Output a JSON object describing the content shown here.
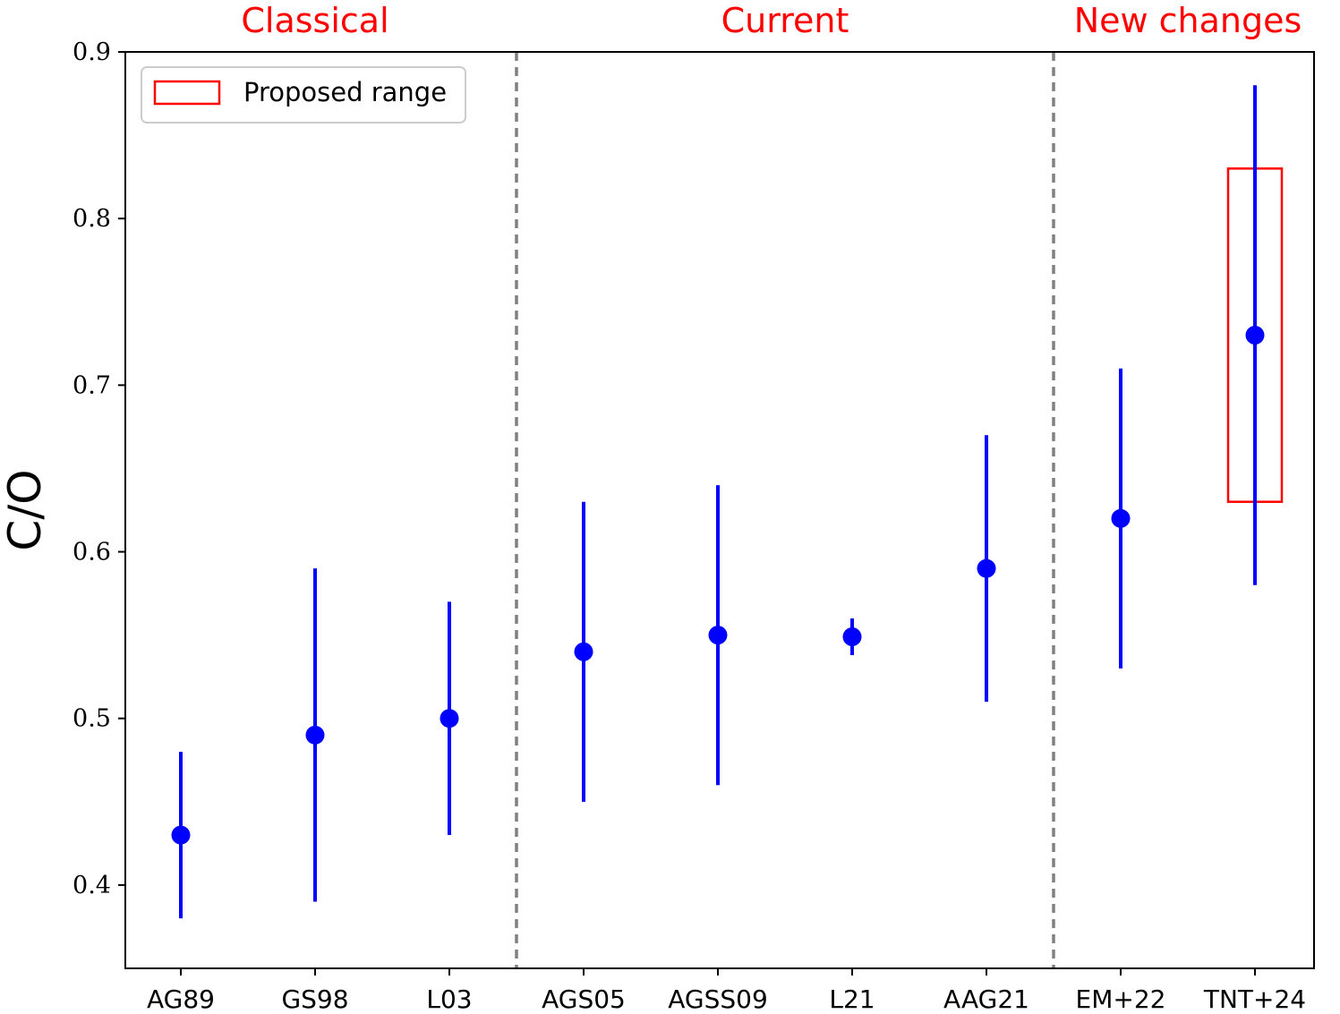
{
  "chart_data": {
    "type": "scatter",
    "ylabel": "C/O",
    "xlabel": "",
    "ylim": [
      0.35,
      0.9
    ],
    "yticks": [
      "0.4",
      "0.5",
      "0.6",
      "0.7",
      "0.8",
      "0.9"
    ],
    "categories": [
      "AG89",
      "GS98",
      "L03",
      "AGS05",
      "AGSS09",
      "L21",
      "AAG21",
      "EM+22",
      "TNT+24"
    ],
    "values": [
      0.43,
      0.49,
      0.5,
      0.54,
      0.55,
      0.549,
      0.59,
      0.62,
      0.73
    ],
    "err_low": [
      0.38,
      0.39,
      0.43,
      0.45,
      0.46,
      0.538,
      0.51,
      0.53,
      0.58
    ],
    "err_high": [
      0.48,
      0.59,
      0.57,
      0.63,
      0.64,
      0.56,
      0.67,
      0.71,
      0.88
    ],
    "groups": [
      {
        "label": "Classical",
        "start": 0,
        "end": 2
      },
      {
        "label": "Current",
        "start": 3,
        "end": 6
      },
      {
        "label": "New changes",
        "start": 7,
        "end": 8
      }
    ],
    "separators_after": [
      2,
      6
    ],
    "proposed_range": {
      "category": "TNT+24",
      "low": 0.63,
      "high": 0.83
    },
    "legend": {
      "label": "Proposed range",
      "position": "upper-left"
    },
    "grid": false,
    "colors": {
      "points": "#0000ff",
      "groups": "#ff0000",
      "range": "#ff0000",
      "separator": "#808080"
    }
  }
}
